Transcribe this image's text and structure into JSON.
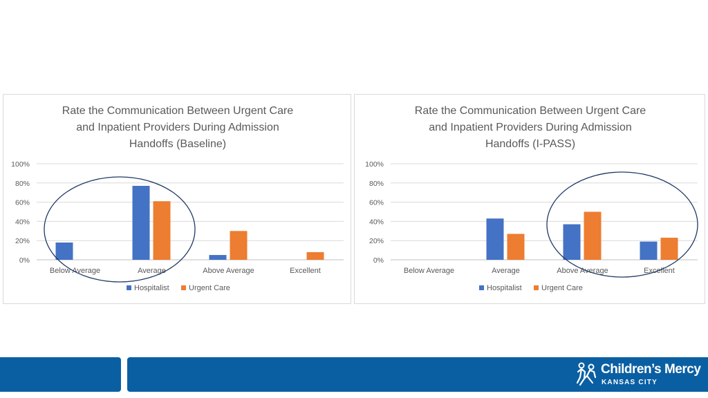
{
  "colors": {
    "hospitalist": "#4472c4",
    "urgent_care": "#ed7d31",
    "footer": "#0a5fa3",
    "circle": "#1f3864"
  },
  "chart_data": [
    {
      "type": "bar",
      "title_lines": [
        "Rate the Communication Between Urgent Care",
        "and Inpatient Providers During Admission",
        "Handoffs (Baseline)"
      ],
      "categories": [
        "Below Average",
        "Average",
        "Above Average",
        "Excellent"
      ],
      "series": [
        {
          "name": "Hospitalist",
          "values": [
            18,
            77,
            5,
            0
          ]
        },
        {
          "name": "Urgent Care",
          "values": [
            0,
            61,
            30,
            8
          ]
        }
      ],
      "y_ticks": [
        "100%",
        "80%",
        "60%",
        "40%",
        "20%",
        "0%"
      ],
      "ylim": [
        0,
        100
      ],
      "legend": "bottom",
      "annotation": "circled: Below Average and Average"
    },
    {
      "type": "bar",
      "title_lines": [
        "Rate the Communication Between Urgent Care",
        "and Inpatient Providers During Admission",
        "Handoffs (I-PASS)"
      ],
      "categories": [
        "Below Average",
        "Average",
        "Above Average",
        "Excellent"
      ],
      "series": [
        {
          "name": "Hospitalist",
          "values": [
            0,
            43,
            37,
            19
          ]
        },
        {
          "name": "Urgent Care",
          "values": [
            0,
            27,
            50,
            23
          ]
        }
      ],
      "y_ticks": [
        "100%",
        "80%",
        "60%",
        "40%",
        "20%",
        "0%"
      ],
      "ylim": [
        0,
        100
      ],
      "legend": "bottom",
      "annotation": "circled: Above Average and Excellent"
    }
  ],
  "logo": {
    "name": "Children’s Mercy",
    "subtitle": "KANSAS CITY",
    "icon": "children-figures-icon"
  }
}
